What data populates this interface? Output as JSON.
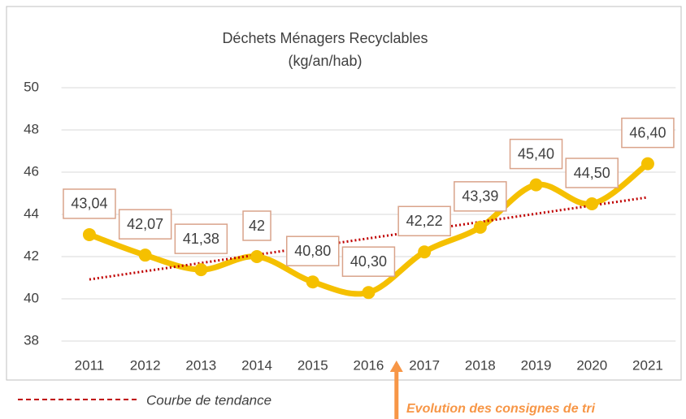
{
  "chart_data": {
    "type": "line",
    "title": "Déchets Ménagers Recyclables",
    "subtitle": "(kg/an/hab)",
    "categories": [
      "2011",
      "2012",
      "2013",
      "2014",
      "2015",
      "2016",
      "2017",
      "2018",
      "2019",
      "2020",
      "2021"
    ],
    "series": [
      {
        "name": "Déchets Ménagers Recyclables",
        "color": "#f5c000",
        "values": [
          43.04,
          42.07,
          41.38,
          42,
          40.8,
          40.3,
          42.22,
          43.39,
          45.4,
          44.5,
          46.4
        ],
        "value_labels": [
          "43,04",
          "42,07",
          "41,38",
          "42",
          "40,80",
          "40,30",
          "42,22",
          "43,39",
          "45,40",
          "44,50",
          "46,40"
        ]
      }
    ],
    "ylim": [
      38,
      50
    ],
    "yticks": [
      38,
      40,
      42,
      44,
      46,
      48,
      50
    ],
    "grid": true,
    "trendline": {
      "label": "Courbe de tendance",
      "color": "#c00000"
    },
    "annotation": {
      "text": "Evolution des consignes de tri",
      "color": "#f79646"
    }
  }
}
